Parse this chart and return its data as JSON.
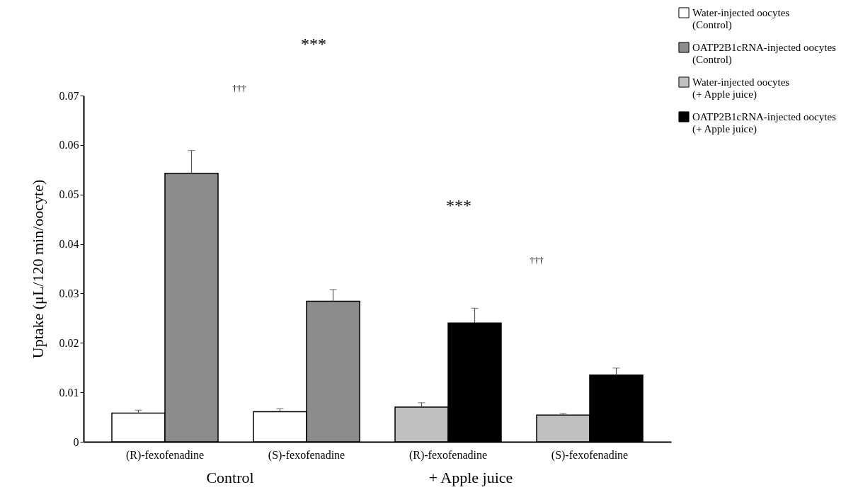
{
  "chart_data": {
    "type": "bar",
    "ylabel": "Uptake  (μL/120 min/oocyte)",
    "categories": [
      "(R)-fexofenadine",
      "(S)-fexofenadine",
      "(R)-fexofenadine",
      "(S)-fexofenadine"
    ],
    "series": [
      {
        "name": "Water-injected oocytes (Control)",
        "color": "#ffffff",
        "values": [
          0.0058,
          0.0061,
          null,
          null
        ],
        "errors": [
          [
            0.0058,
            0.0064
          ],
          [
            0.0061,
            0.0067
          ],
          null,
          null
        ]
      },
      {
        "name": "OATP2B1cRNA-injected oocytes (Control)",
        "color": "#8c8c8c",
        "values": [
          0.0543,
          0.0284,
          null,
          null
        ],
        "errors": [
          [
            0.0543,
            0.0589
          ],
          [
            0.0284,
            0.0308
          ],
          null,
          null
        ]
      },
      {
        "name": "Water-injected oocytes (+ Apple juice)",
        "color": "#c0c0c0",
        "values": [
          null,
          null,
          0.007,
          0.0054
        ],
        "errors": [
          null,
          null,
          [
            0.007,
            0.0079
          ],
          [
            0.0054,
            0.0057
          ]
        ]
      },
      {
        "name": "OATP2B1cRNA-injected oocytes (+ Apple juice)",
        "color": "#000000",
        "values": [
          null,
          null,
          0.024,
          0.0135
        ],
        "errors": [
          null,
          null,
          [
            0.024,
            0.027
          ],
          [
            0.0135,
            0.0149
          ]
        ]
      }
    ],
    "ylim": [
      0,
      0.07
    ],
    "yticks": [
      0,
      0.01,
      0.02,
      0.03,
      0.04,
      0.05,
      0.06,
      0.07
    ],
    "grid": false,
    "legend": "top right",
    "annotations": [
      "***",
      "†††",
      "***",
      "†††",
      "Control",
      "+ Apple juice"
    ]
  }
}
